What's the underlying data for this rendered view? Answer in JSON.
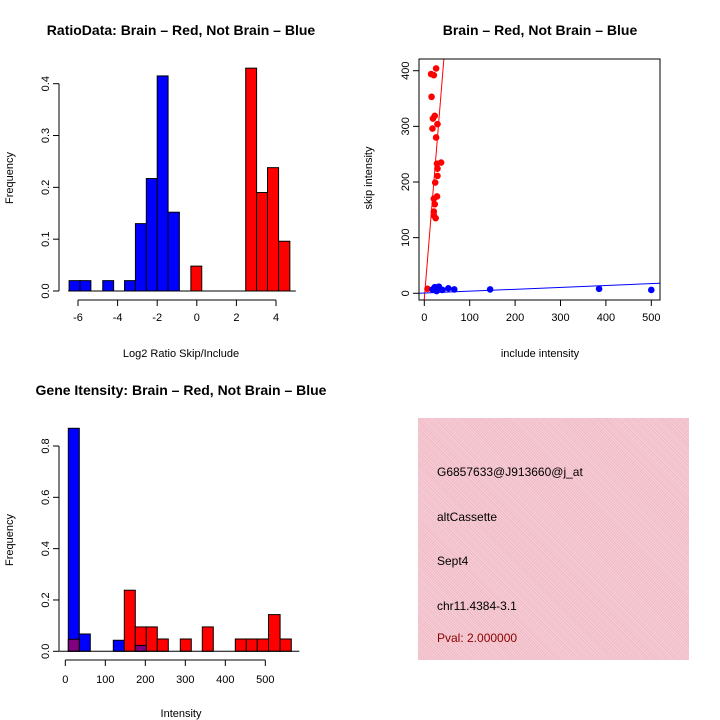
{
  "chart_data": [
    {
      "type": "bar",
      "subtype": "histogram",
      "title": "RatioData: Brain – Red, Not Brain – Blue",
      "xlabel": "Log2 Ratio Skip/Include",
      "ylabel": "Frequency",
      "xlim": [
        -6.5,
        5
      ],
      "ylim": [
        0,
        0.43
      ],
      "xticks": [
        -6,
        -4,
        -2,
        0,
        2,
        4
      ],
      "yticks": [
        0.0,
        0.1,
        0.2,
        0.3,
        0.4
      ],
      "ytick_labels": [
        "0.0",
        "0.1",
        "0.2",
        "0.3",
        "0.4"
      ],
      "series": [
        {
          "name": "Not Brain",
          "color": "#0000ff",
          "bins": [
            [
              -6.45,
              -5.9,
              0.02
            ],
            [
              -5.9,
              -5.35,
              0.02
            ],
            [
              -4.75,
              -4.2,
              0.02
            ],
            [
              -3.65,
              -3.1,
              0.02
            ],
            [
              -3.1,
              -2.55,
              0.13
            ],
            [
              -2.55,
              -2.0,
              0.217
            ],
            [
              -2.0,
              -1.45,
              0.415
            ],
            [
              -1.45,
              -0.88,
              0.152
            ]
          ]
        },
        {
          "name": "Brain",
          "color": "#ff0000",
          "bins": [
            [
              -0.3,
              0.25,
              0.048
            ],
            [
              2.47,
              3.02,
              0.43
            ],
            [
              3.02,
              3.57,
              0.19
            ],
            [
              3.57,
              4.13,
              0.238
            ],
            [
              4.13,
              4.7,
              0.096
            ]
          ]
        }
      ]
    },
    {
      "type": "scatter",
      "title": "Brain – Red, Not Brain – Blue",
      "xlabel": "include intensity",
      "ylabel": "skip intensity",
      "xlim": [
        -11.7,
        519
      ],
      "ylim": [
        -12,
        421
      ],
      "xticks": [
        0,
        100,
        200,
        300,
        400,
        500
      ],
      "yticks": [
        0,
        100,
        200,
        300,
        400
      ],
      "series": [
        {
          "name": "Brain",
          "color": "#ff0000",
          "points": [
            [
              15,
              394
            ],
            [
              21,
              392
            ],
            [
              26,
              404
            ],
            [
              16,
              353
            ],
            [
              19,
              314
            ],
            [
              23,
              319
            ],
            [
              29,
              304
            ],
            [
              18,
              296
            ],
            [
              26,
              280
            ],
            [
              28,
              233
            ],
            [
              37,
              235
            ],
            [
              29,
              224
            ],
            [
              29,
              211
            ],
            [
              24,
              199
            ],
            [
              28,
              174
            ],
            [
              21,
              170
            ],
            [
              23,
              160
            ],
            [
              21,
              147
            ],
            [
              21,
              140
            ],
            [
              25,
              135
            ],
            [
              7,
              8
            ]
          ],
          "fit": {
            "intercept": -10,
            "slope": 10
          }
        },
        {
          "name": "Not Brain",
          "color": "#0000ff",
          "points": [
            [
              18,
              7
            ],
            [
              23,
              11
            ],
            [
              32,
              12
            ],
            [
              27,
              4
            ],
            [
              40,
              6
            ],
            [
              53,
              9
            ],
            [
              66,
              7
            ],
            [
              145,
              7
            ],
            [
              385,
              8
            ],
            [
              500,
              6
            ]
          ],
          "fit": {
            "intercept": 0.4,
            "slope": 0.034
          }
        }
      ]
    },
    {
      "type": "bar",
      "subtype": "histogram",
      "title": "Gene Itensity: Brain – Red, Not Brain – Blue",
      "xlabel": "Intensity",
      "ylabel": "Frequency",
      "xlim": [
        -15,
        585
      ],
      "ylim": [
        0,
        0.87
      ],
      "xticks": [
        0,
        100,
        200,
        300,
        400,
        500
      ],
      "yticks": [
        0.0,
        0.2,
        0.4,
        0.6,
        0.8
      ],
      "ytick_labels": [
        "0.0",
        "0.2",
        "0.4",
        "0.6",
        "0.8"
      ],
      "series": [
        {
          "name": "Not Brain",
          "color": "#0000ff",
          "bins": [
            [
              7.5,
              35,
              0.869
            ],
            [
              35,
              62.5,
              0.0675
            ],
            [
              120,
              147.5,
              0.043
            ]
          ]
        },
        {
          "name": "Brain",
          "color": "#ff0000",
          "bins": [
            [
              147.5,
              175,
              0.238
            ],
            [
              175,
              202.5,
              0.095
            ],
            [
              202.5,
              230,
              0.095
            ],
            [
              230,
              257.5,
              0.048
            ],
            [
              287.5,
              315,
              0.048
            ],
            [
              342.5,
              370,
              0.095
            ],
            [
              425,
              452.5,
              0.048
            ],
            [
              452.5,
              480,
              0.048
            ],
            [
              480,
              508,
              0.048
            ],
            [
              508,
              537,
              0.143
            ],
            [
              537,
              565,
              0.048
            ]
          ]
        },
        {
          "name": "Overlap",
          "color": "#800080",
          "bins": [
            [
              7.5,
              35,
              0.047
            ],
            [
              175,
              202.5,
              0.023
            ]
          ]
        }
      ]
    }
  ],
  "info": {
    "probe_id": "G6857633@J913660@j_at",
    "event_type": "altCassette",
    "gene": "Sept4",
    "location": "chr11.4384-3.1",
    "pval": "Pval: 2.000000",
    "pval_color": "#8b0000"
  }
}
